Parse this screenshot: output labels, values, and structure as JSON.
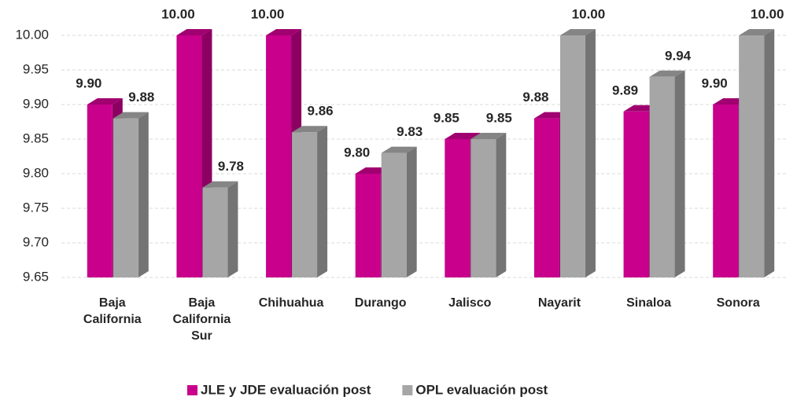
{
  "chart_data": {
    "type": "bar3d",
    "categories": [
      "Baja California",
      "Baja California Sur",
      "Chihuahua",
      "Durango",
      "Jalisco",
      "Nayarit",
      "Sinaloa",
      "Sonora"
    ],
    "series": [
      {
        "name": "JLE y JDE evaluación post",
        "color": "#c8008c",
        "values": [
          9.9,
          10,
          10,
          9.8,
          9.85,
          9.88,
          9.89,
          9.9
        ],
        "value_labels": [
          "9.90",
          "10.00",
          "10.00",
          "9.80",
          "9.85",
          "9.88",
          "9.89",
          "9.90"
        ]
      },
      {
        "name": "OPL evaluación post",
        "color": "#a6a6a6",
        "values": [
          9.88,
          9.78,
          9.86,
          9.83,
          9.85,
          10,
          9.94,
          10
        ],
        "value_labels": [
          "9.88",
          "9.78",
          "9.86",
          "9.83",
          "9.85",
          "10.00",
          "9.94",
          "10.00"
        ]
      }
    ],
    "ylim": [
      9.65,
      10
    ],
    "yticks": [
      9.65,
      {
        "value": 9.7,
        "label": "9.70"
      },
      9.75,
      {
        "value": 9.8,
        "label": "9.80"
      },
      9.85,
      {
        "value": 9.9,
        "label": "9.90"
      },
      9.95,
      {
        "value": 10,
        "label": "10.00"
      }
    ],
    "grid": true,
    "legend": "bottom"
  }
}
